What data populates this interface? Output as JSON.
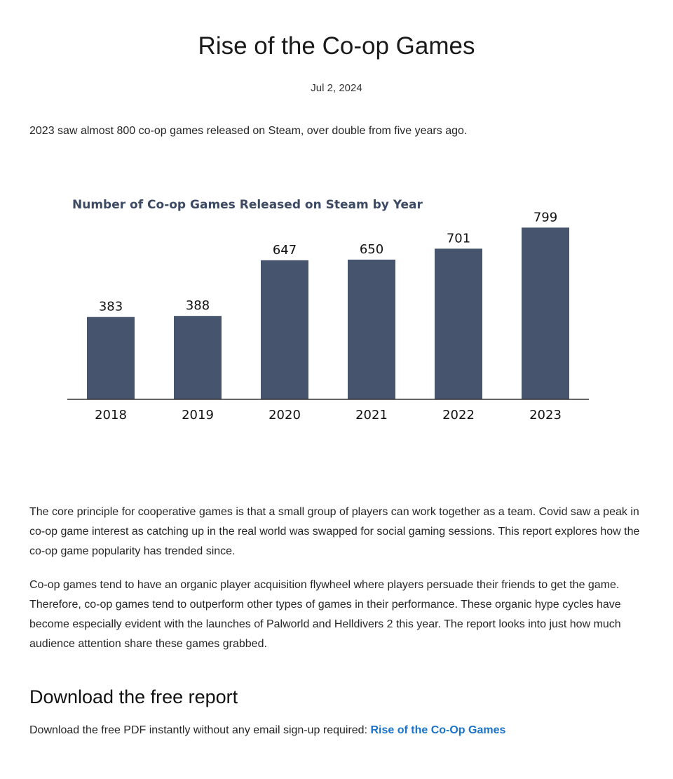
{
  "article": {
    "title": "Rise of the Co-op Games",
    "date": "Jul 2, 2024",
    "intro": "2023 saw almost 800 co-op games released on Steam, over double from five years ago.",
    "paragraphs": [
      "The core principle for cooperative games is that a small group of players can work together as a team. Covid saw a peak in co-op game interest as catching up in the real world was swapped for social gaming sessions. This report explores how the co-op game popularity has trended since.",
      "Co-op games tend to have an organic player acquisition flywheel where players persuade their friends to get the game. Therefore, co-op games tend to outperform other types of games in their performance. These organic hype cycles have become especially evident with the launches of Palworld and Helldivers 2 this year. The report looks into just how much audience attention share these games grabbed."
    ],
    "download_heading": "Download the free report",
    "download_text": "Download the free PDF instantly without any email sign-up required: ",
    "download_link_label": "Rise of the Co-Op Games"
  },
  "colors": {
    "bar": "#46546d",
    "axis": "#333333",
    "link": "#1a73c8"
  },
  "chart_data": {
    "type": "bar",
    "title": "Number of Co-op Games Released on Steam by Year",
    "categories": [
      "2018",
      "2019",
      "2020",
      "2021",
      "2022",
      "2023"
    ],
    "values": [
      383,
      388,
      647,
      650,
      701,
      799
    ],
    "xlabel": "",
    "ylabel": "",
    "ylim": [
      0,
      800
    ],
    "grid": false,
    "legend": "none",
    "data_labels": true
  }
}
